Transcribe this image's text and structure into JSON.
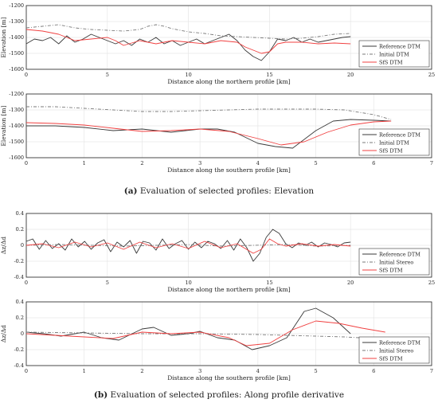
{
  "captions": {
    "a_tag": "(a)",
    "a_text": "Evaluation of selected profiles: Elevation",
    "b_tag": "(b)",
    "b_text": "Evaluation of selected profiles: Along profile derivative"
  },
  "colors": {
    "reference": "#3a3a3a",
    "initial": "#7a7a7a",
    "sfs": "#f04040"
  },
  "chart_data": [
    {
      "type": "line",
      "xlabel": "Distance along the northern profile [km]",
      "ylabel": "Elevation [m]",
      "xlim": [
        0,
        25
      ],
      "ylim": [
        -1600,
        -1200
      ],
      "xticks": [
        0,
        5,
        10,
        15,
        20,
        25
      ],
      "yticks": [
        -1600,
        -1500,
        -1400,
        -1300,
        -1200
      ],
      "xtick_labels": [
        "0",
        "5",
        "10",
        "15",
        "20",
        "25"
      ],
      "ytick_labels": [
        "-1600",
        "-1500",
        "-1400",
        "-1300",
        "-1200"
      ],
      "grid": true,
      "legend_position": "bottom-right",
      "series": [
        {
          "name": "Reference DTM",
          "style": "solid",
          "x": [
            0,
            0.5,
            1,
            1.5,
            2,
            2.5,
            3,
            3.5,
            4,
            4.5,
            5,
            5.5,
            6,
            6.5,
            7,
            7.5,
            8,
            8.5,
            9,
            9.5,
            10,
            10.5,
            11,
            11.5,
            12,
            12.5,
            13,
            13.5,
            14,
            14.5,
            15,
            15.5,
            16,
            16.5,
            17,
            17.5,
            18,
            18.5,
            19,
            19.5,
            20
          ],
          "y": [
            -1440,
            -1410,
            -1420,
            -1400,
            -1440,
            -1390,
            -1430,
            -1410,
            -1380,
            -1400,
            -1420,
            -1440,
            -1420,
            -1450,
            -1410,
            -1430,
            -1400,
            -1440,
            -1420,
            -1450,
            -1430,
            -1410,
            -1440,
            -1420,
            -1400,
            -1380,
            -1420,
            -1480,
            -1520,
            -1545,
            -1490,
            -1410,
            -1420,
            -1400,
            -1430,
            -1410,
            -1430,
            -1420,
            -1410,
            -1400,
            -1395
          ]
        },
        {
          "name": "Initial DTM",
          "style": "dashdot",
          "x": [
            0,
            1,
            2,
            3,
            4,
            5,
            6,
            7,
            7.5,
            8,
            8.5,
            9,
            10,
            11,
            12,
            13,
            14,
            15,
            16,
            17,
            18,
            19,
            20
          ],
          "y": [
            -1340,
            -1330,
            -1320,
            -1340,
            -1350,
            -1355,
            -1360,
            -1350,
            -1330,
            -1320,
            -1330,
            -1345,
            -1365,
            -1375,
            -1390,
            -1395,
            -1400,
            -1405,
            -1410,
            -1405,
            -1395,
            -1380,
            -1375
          ]
        },
        {
          "name": "SfS DTM",
          "style": "solid",
          "x": [
            0,
            1,
            2,
            3,
            4,
            5,
            5.5,
            6,
            7,
            8,
            9,
            10,
            11,
            11.5,
            12,
            13,
            13.5,
            14,
            14.5,
            15,
            15.5,
            16,
            17,
            18,
            19,
            20
          ],
          "y": [
            -1350,
            -1360,
            -1380,
            -1420,
            -1410,
            -1400,
            -1420,
            -1450,
            -1420,
            -1440,
            -1420,
            -1430,
            -1440,
            -1430,
            -1420,
            -1430,
            -1460,
            -1480,
            -1500,
            -1490,
            -1440,
            -1430,
            -1430,
            -1440,
            -1435,
            -1440
          ]
        }
      ]
    },
    {
      "type": "line",
      "xlabel": "Distance along the southern profile [km]",
      "ylabel": "Elevation [m]",
      "xlim": [
        0,
        7
      ],
      "ylim": [
        -1600,
        -1200
      ],
      "xticks": [
        0,
        1,
        2,
        3,
        4,
        5,
        6,
        7
      ],
      "yticks": [
        -1600,
        -1500,
        -1400,
        -1300,
        -1200
      ],
      "xtick_labels": [
        "0",
        "1",
        "2",
        "3",
        "4",
        "5",
        "6",
        "7"
      ],
      "ytick_labels": [
        "-1600",
        "-1500",
        "-1400",
        "-1300",
        "-1200"
      ],
      "grid": true,
      "legend_position": "bottom-right",
      "series": [
        {
          "name": "Reference DTM",
          "style": "solid",
          "x": [
            0,
            0.5,
            1,
            1.5,
            2,
            2.5,
            3,
            3.3,
            3.6,
            4,
            4.3,
            4.6,
            5,
            5.3,
            5.6,
            6,
            6.3
          ],
          "y": [
            -1400,
            -1400,
            -1410,
            -1430,
            -1420,
            -1440,
            -1420,
            -1420,
            -1440,
            -1510,
            -1530,
            -1540,
            -1430,
            -1370,
            -1360,
            -1365,
            -1370
          ]
        },
        {
          "name": "Initial DTM",
          "style": "dashdot",
          "x": [
            0,
            0.5,
            1,
            1.5,
            2,
            2.5,
            3,
            3.5,
            4,
            4.5,
            5,
            5.5,
            6,
            6.3
          ],
          "y": [
            -1280,
            -1280,
            -1290,
            -1300,
            -1310,
            -1310,
            -1305,
            -1300,
            -1295,
            -1295,
            -1295,
            -1300,
            -1330,
            -1360
          ]
        },
        {
          "name": "SfS DTM",
          "style": "solid",
          "x": [
            0,
            0.5,
            1,
            1.5,
            2,
            2.5,
            3,
            3.5,
            4,
            4.4,
            4.8,
            5.2,
            5.6,
            6,
            6.3
          ],
          "y": [
            -1380,
            -1385,
            -1395,
            -1415,
            -1435,
            -1430,
            -1420,
            -1435,
            -1480,
            -1520,
            -1500,
            -1440,
            -1395,
            -1375,
            -1370
          ]
        }
      ]
    },
    {
      "type": "line",
      "xlabel": "Distance along the northern profile [km]",
      "ylabel": "Δz/Δd",
      "xlim": [
        0,
        25
      ],
      "ylim": [
        -0.4,
        0.4
      ],
      "xticks": [
        0,
        5,
        10,
        15,
        20,
        25
      ],
      "yticks": [
        -0.4,
        -0.2,
        0,
        0.2,
        0.4
      ],
      "xtick_labels": [
        "0",
        "5",
        "10",
        "15",
        "20",
        "25"
      ],
      "ytick_labels": [
        "-0.4",
        "-0.2",
        "0",
        "0.2",
        "0.4"
      ],
      "grid": true,
      "legend_position": "bottom-right",
      "series": [
        {
          "name": "Reference DTM",
          "style": "solid",
          "x": [
            0,
            0.4,
            0.8,
            1.2,
            1.6,
            2,
            2.4,
            2.8,
            3.2,
            3.6,
            4,
            4.4,
            4.8,
            5.2,
            5.6,
            6,
            6.4,
            6.8,
            7.2,
            7.6,
            8,
            8.4,
            8.8,
            9.2,
            9.6,
            10,
            10.4,
            10.8,
            11.2,
            11.6,
            12,
            12.4,
            12.8,
            13.2,
            13.6,
            14,
            14.4,
            14.8,
            15.2,
            15.6,
            16,
            16.4,
            16.8,
            17.2,
            17.6,
            18,
            18.4,
            18.8,
            19.2,
            19.6,
            20
          ],
          "y": [
            0.05,
            0.08,
            -0.05,
            0.06,
            -0.04,
            0.02,
            -0.06,
            0.08,
            -0.02,
            0.05,
            -0.05,
            0.03,
            0.07,
            -0.08,
            0.04,
            -0.02,
            0.06,
            -0.1,
            0.05,
            0.03,
            -0.06,
            0.08,
            -0.04,
            0.02,
            0.06,
            -0.05,
            0.04,
            -0.03,
            0.05,
            0.02,
            -0.04,
            0.06,
            -0.06,
            0.08,
            -0.03,
            -0.2,
            -0.1,
            0.1,
            0.2,
            0.15,
            0.02,
            -0.03,
            0.03,
            0.0,
            0.04,
            -0.02,
            0.03,
            0.01,
            -0.02,
            0.03,
            0.04
          ]
        },
        {
          "name": "Initial Stereo",
          "style": "dashdot",
          "x": [
            0,
            2,
            4,
            6,
            8,
            10,
            12,
            14,
            16,
            18,
            20
          ],
          "y": [
            0.0,
            0.01,
            0.0,
            -0.01,
            0.0,
            0.01,
            -0.01,
            0.0,
            0.01,
            -0.01,
            0.0
          ]
        },
        {
          "name": "SfS DTM",
          "style": "solid",
          "x": [
            0,
            1,
            2,
            3,
            4,
            5,
            6,
            7,
            8,
            9,
            10,
            11,
            12,
            13,
            14,
            14.5,
            15,
            15.5,
            16,
            17,
            18,
            19,
            20
          ],
          "y": [
            0.0,
            0.02,
            -0.03,
            0.04,
            -0.02,
            0.03,
            -0.05,
            0.04,
            -0.03,
            0.02,
            -0.04,
            0.05,
            -0.03,
            0.02,
            -0.1,
            -0.05,
            0.08,
            0.02,
            -0.01,
            0.02,
            -0.01,
            0.01,
            -0.01
          ]
        }
      ]
    },
    {
      "type": "line",
      "xlabel": "Distance along the southern profile [km]",
      "ylabel": "Δz/Δd",
      "xlim": [
        0,
        7
      ],
      "ylim": [
        -0.4,
        0.4
      ],
      "xticks": [
        0,
        1,
        2,
        3,
        4,
        5,
        6,
        7
      ],
      "yticks": [
        -0.4,
        -0.2,
        0,
        0.2,
        0.4
      ],
      "xtick_labels": [
        "0",
        "1",
        "2",
        "3",
        "4",
        "5",
        "6",
        "7"
      ],
      "ytick_labels": [
        "-0.4",
        "-0.2",
        "0",
        "0.2",
        "0.4"
      ],
      "grid": true,
      "legend_position": "bottom-right",
      "series": [
        {
          "name": "Reference DTM",
          "style": "solid",
          "x": [
            0,
            0.3,
            0.6,
            1,
            1.3,
            1.6,
            2,
            2.2,
            2.5,
            2.8,
            3,
            3.3,
            3.6,
            3.9,
            4.2,
            4.5,
            4.8,
            5,
            5.3,
            5.6
          ],
          "y": [
            0.02,
            0.0,
            -0.03,
            0.02,
            -0.05,
            -0.08,
            0.06,
            0.08,
            -0.02,
            0.0,
            0.03,
            -0.05,
            -0.08,
            -0.2,
            -0.15,
            -0.05,
            0.28,
            0.32,
            0.2,
            0.0
          ]
        },
        {
          "name": "Initial Stereo",
          "style": "dashdot",
          "x": [
            0,
            1,
            2,
            3,
            4,
            4.5,
            5,
            5.5,
            6,
            6.3
          ],
          "y": [
            0.02,
            0.01,
            0.0,
            0.0,
            -0.01,
            -0.02,
            -0.03,
            -0.04,
            -0.06,
            -0.08
          ]
        },
        {
          "name": "SfS DTM",
          "style": "solid",
          "x": [
            0,
            0.5,
            1,
            1.5,
            2,
            2.5,
            3,
            3.5,
            3.8,
            4.2,
            4.6,
            5,
            5.4,
            5.8,
            6.2
          ],
          "y": [
            0.0,
            -0.02,
            -0.04,
            -0.06,
            0.02,
            0.0,
            0.02,
            -0.05,
            -0.15,
            -0.12,
            0.05,
            0.16,
            0.13,
            0.07,
            0.02
          ]
        }
      ]
    }
  ]
}
